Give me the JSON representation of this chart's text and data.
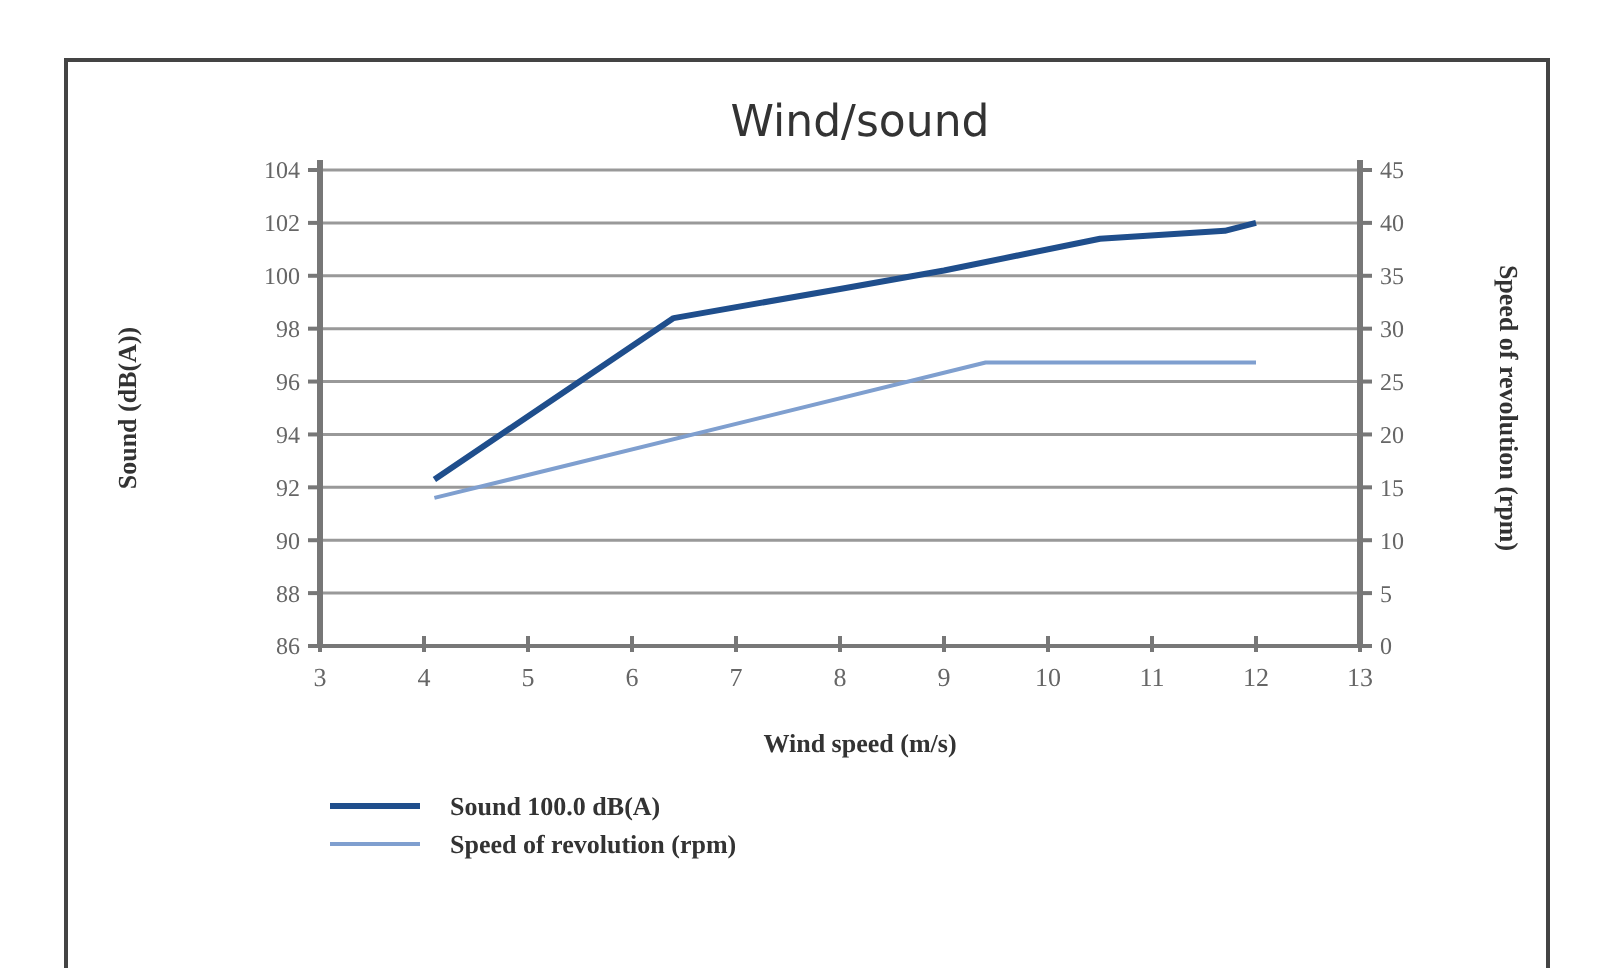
{
  "chart_data": {
    "type": "line",
    "title": "Wind/sound",
    "xlabel": "Wind speed (m/s)",
    "ylabel": "Sound (dB(A))",
    "y2label": "Speed of revolution (rpm)",
    "xlim": [
      3,
      13
    ],
    "xticks": [
      3,
      4,
      5,
      6,
      7,
      8,
      9,
      10,
      11,
      12,
      13
    ],
    "ylim": [
      86,
      104
    ],
    "yticks": [
      86,
      88,
      90,
      92,
      94,
      96,
      98,
      100,
      102,
      104
    ],
    "y2lim": [
      0,
      45
    ],
    "y2ticks": [
      0,
      5,
      10,
      15,
      20,
      25,
      30,
      35,
      40,
      45
    ],
    "grid": "y",
    "legend": "bottom left",
    "marker": "none",
    "line_style": "solid",
    "series": [
      {
        "name": "Sound 100.0 dB(A)",
        "color": "#1f4e8c",
        "x": [
          4.1,
          6.4,
          8,
          9,
          10.5,
          11.7,
          12
        ],
        "values": [
          92.3,
          98.4,
          99.5,
          100.2,
          101.4,
          101.7,
          102.0
        ]
      },
      {
        "name": "Speed of revolution (rpm)",
        "color": "#7f9fcf",
        "axis": "y2",
        "x": [
          4.1,
          9.4,
          12
        ],
        "values": [
          14,
          26.8,
          26.8
        ]
      }
    ]
  }
}
